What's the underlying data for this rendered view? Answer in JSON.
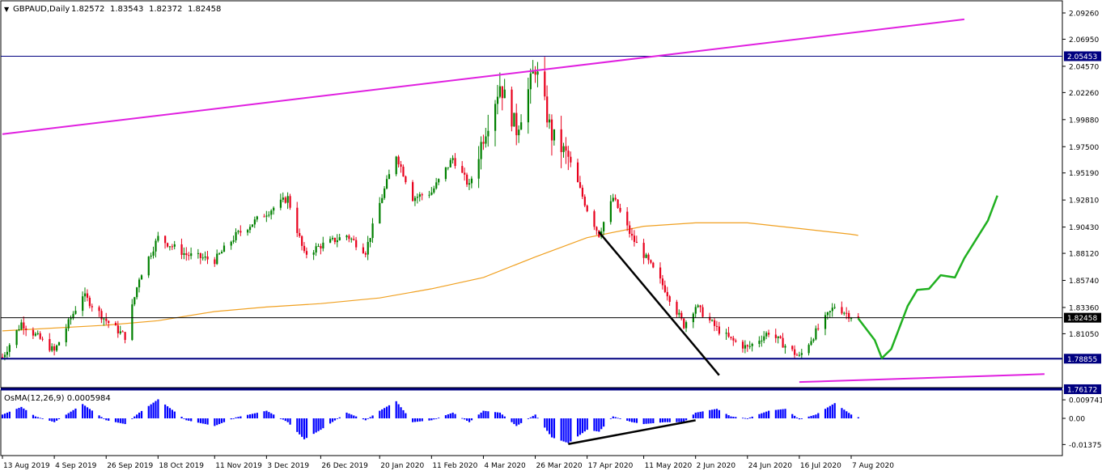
{
  "header": {
    "menu_glyph": "▼",
    "symbol": "GBPAUD,Daily",
    "ohlc": [
      "1.82572",
      "1.83543",
      "1.82372",
      "1.82458"
    ]
  },
  "indicator": {
    "label": "OsMA(12,26,9) 0.0005984"
  },
  "price_axis": {
    "ticks": [
      "2.09260",
      "2.06950",
      "2.04570",
      "2.02260",
      "1.99880",
      "1.97500",
      "1.95190",
      "1.92810",
      "1.90430",
      "1.88120",
      "1.85740",
      "1.83360",
      "1.81050"
    ],
    "tags": [
      {
        "label": "2.05453",
        "bg": "#000080"
      },
      {
        "label": "1.82458",
        "bg": "#000000"
      },
      {
        "label": "1.78855",
        "bg": "#000080"
      },
      {
        "label": "1.76172",
        "bg": "#000080"
      }
    ]
  },
  "osc_axis": {
    "ticks": [
      "0.009741",
      "0.00",
      "-0.013757"
    ]
  },
  "time_axis": {
    "labels": [
      "13 Aug 2019",
      "4 Sep 2019",
      "26 Sep 2019",
      "18 Oct 2019",
      "11 Nov 2019",
      "3 Dec 2019",
      "26 Dec 2019",
      "20 Jan 2020",
      "11 Feb 2020",
      "4 Mar 2020",
      "26 Mar 2020",
      "17 Apr 2020",
      "11 May 2020",
      "2 Jun 2020",
      "24 Jun 2020",
      "16 Jul 2020",
      "7 Aug 2020"
    ]
  },
  "colors": {
    "bull": "#008000",
    "bear": "#e8001c",
    "ma": "#f0a020",
    "hline": "#000080",
    "trend": "#e020e0",
    "forecast": "#20b020",
    "osma": "#0000ff"
  },
  "chart_data": {
    "type": "candlestick",
    "symbol": "GBPAUD",
    "timeframe": "Daily",
    "last": {
      "open": 1.82572,
      "high": 1.83543,
      "low": 1.82372,
      "close": 1.82458
    },
    "ylim": [
      1.7617,
      2.0926
    ],
    "close_path": [
      [
        "13 Aug 2019",
        1.79
      ],
      [
        "21 Aug 2019",
        1.82
      ],
      [
        "4 Sep 2019",
        1.795
      ],
      [
        "16 Sep 2019",
        1.845
      ],
      [
        "26 Sep 2019",
        1.822
      ],
      [
        "4 Oct 2019",
        1.808
      ],
      [
        "10 Oct 2019",
        1.86
      ],
      [
        "18 Oct 2019",
        1.895
      ],
      [
        "30 Oct 2019",
        1.88
      ],
      [
        "11 Nov 2019",
        1.875
      ],
      [
        "20 Nov 2019",
        1.897
      ],
      [
        "3 Dec 2019",
        1.917
      ],
      [
        "12 Dec 2019",
        1.93
      ],
      [
        "19 Dec 2019",
        1.88
      ],
      [
        "26 Dec 2019",
        1.888
      ],
      [
        "6 Jan 2020",
        1.897
      ],
      [
        "14 Jan 2020",
        1.883
      ],
      [
        "20 Jan 2020",
        1.925
      ],
      [
        "27 Jan 2020",
        1.968
      ],
      [
        "3 Feb 2020",
        1.93
      ],
      [
        "11 Feb 2020",
        1.935
      ],
      [
        "20 Feb 2020",
        1.965
      ],
      [
        "27 Feb 2020",
        1.94
      ],
      [
        "4 Mar 2020",
        1.985
      ],
      [
        "11 Mar 2020",
        2.03
      ],
      [
        "18 Mar 2020",
        1.99
      ],
      [
        "26 Mar 2020",
        2.045
      ],
      [
        "2 Apr 2020",
        1.985
      ],
      [
        "9 Apr 2020",
        1.965
      ],
      [
        "17 Apr 2020",
        1.92
      ],
      [
        "22 Apr 2020",
        1.898
      ],
      [
        "28 Apr 2020",
        1.93
      ],
      [
        "6 May 2020",
        1.895
      ],
      [
        "11 May 2020",
        1.88
      ],
      [
        "20 May 2020",
        1.85
      ],
      [
        "28 May 2020",
        1.818
      ],
      [
        "2 Jun 2020",
        1.835
      ],
      [
        "11 Jun 2020",
        1.815
      ],
      [
        "17 Jun 2020",
        1.805
      ],
      [
        "24 Jun 2020",
        1.798
      ],
      [
        "3 Jul 2020",
        1.812
      ],
      [
        "10 Jul 2020",
        1.8
      ],
      [
        "16 Jul 2020",
        1.79
      ],
      [
        "23 Jul 2020",
        1.812
      ],
      [
        "31 Jul 2020",
        1.835
      ],
      [
        "7 Aug 2020",
        1.826
      ],
      [
        "10 Aug 2020",
        1.8246
      ]
    ],
    "moving_average_path": [
      [
        "13 Aug 2019",
        1.813
      ],
      [
        "26 Sep 2019",
        1.818
      ],
      [
        "18 Oct 2019",
        1.822
      ],
      [
        "11 Nov 2019",
        1.83
      ],
      [
        "3 Dec 2019",
        1.834
      ],
      [
        "26 Dec 2019",
        1.837
      ],
      [
        "20 Jan 2020",
        1.842
      ],
      [
        "11 Feb 2020",
        1.85
      ],
      [
        "4 Mar 2020",
        1.86
      ],
      [
        "26 Mar 2020",
        1.878
      ],
      [
        "17 Apr 2020",
        1.895
      ],
      [
        "11 May 2020",
        1.905
      ],
      [
        "2 Jun 2020",
        1.908
      ],
      [
        "24 Jun 2020",
        1.908
      ],
      [
        "16 Jul 2020",
        1.903
      ],
      [
        "7 Aug 2020",
        1.898
      ],
      [
        "10 Aug 2020",
        1.897
      ]
    ],
    "horizontal_levels": [
      2.05453,
      1.82458,
      1.78855,
      1.76172
    ],
    "lines": [
      {
        "from": [
          "13 Aug 2019",
          1.986
        ],
        "to": [
          "24 Sep 2020",
          2.087
        ]
      },
      {
        "from": [
          "22 Apr 2020",
          1.9
        ],
        "to": [
          "12 Jun 2020",
          1.774
        ]
      },
      {
        "from": [
          "16 Jul 2020",
          1.768
        ],
        "to": [
          "28 Oct 2020",
          1.775
        ]
      }
    ],
    "forecast_path": [
      [
        "10 Aug 2020",
        1.824
      ],
      [
        "17 Aug 2020",
        1.805
      ],
      [
        "20 Aug 2020",
        1.789
      ],
      [
        "24 Aug 2020",
        1.797
      ],
      [
        "31 Aug 2020",
        1.835
      ],
      [
        "4 Sep 2020",
        1.849
      ],
      [
        "9 Sep 2020",
        1.85
      ],
      [
        "14 Sep 2020",
        1.862
      ],
      [
        "20 Sep 2020",
        1.86
      ],
      [
        "24 Sep 2020",
        1.877
      ],
      [
        "4 Oct 2020",
        1.91
      ],
      [
        "8 Oct 2020",
        1.932
      ]
    ],
    "osma": {
      "ylim": [
        -0.013757,
        0.009741
      ],
      "histogram": [
        [
          "13 Aug 2019",
          0.002
        ],
        [
          "21 Aug 2019",
          0.006
        ],
        [
          "27 Aug 2019",
          0.001
        ],
        [
          "4 Sep 2019",
          -0.002
        ],
        [
          "16 Sep 2019",
          0.0075
        ],
        [
          "26 Sep 2019",
          -0.001
        ],
        [
          "4 Oct 2019",
          -0.003
        ],
        [
          "10 Oct 2019",
          0.003
        ],
        [
          "18 Oct 2019",
          0.01
        ],
        [
          "30 Oct 2019",
          -0.001
        ],
        [
          "11 Nov 2019",
          -0.004
        ],
        [
          "20 Nov 2019",
          0.0005
        ],
        [
          "3 Dec 2019",
          0.004
        ],
        [
          "12 Dec 2019",
          -0.002
        ],
        [
          "19 Dec 2019",
          -0.011
        ],
        [
          "26 Dec 2019",
          -0.006
        ],
        [
          "6 Jan 2020",
          0.003
        ],
        [
          "14 Jan 2020",
          -0.001
        ],
        [
          "20 Jan 2020",
          0.004
        ],
        [
          "27 Jan 2020",
          0.009
        ],
        [
          "3 Feb 2020",
          -0.002
        ],
        [
          "11 Feb 2020",
          -0.001
        ],
        [
          "20 Feb 2020",
          0.003
        ],
        [
          "27 Feb 2020",
          -0.002
        ],
        [
          "4 Mar 2020",
          0.004
        ],
        [
          "11 Mar 2020",
          0.003
        ],
        [
          "18 Mar 2020",
          -0.004
        ],
        [
          "26 Mar 2020",
          0.002
        ],
        [
          "2 Apr 2020",
          -0.01
        ],
        [
          "9 Apr 2020",
          -0.013
        ],
        [
          "17 Apr 2020",
          -0.006
        ],
        [
          "22 Apr 2020",
          -0.007
        ],
        [
          "28 Apr 2020",
          0.001
        ],
        [
          "6 May 2020",
          -0.002
        ],
        [
          "11 May 2020",
          -0.003
        ],
        [
          "20 May 2020",
          -0.002
        ],
        [
          "28 May 2020",
          -0.002
        ],
        [
          "2 Jun 2020",
          0.003
        ],
        [
          "11 Jun 2020",
          0.005
        ],
        [
          "17 Jun 2020",
          0.001
        ],
        [
          "24 Jun 2020",
          0.0
        ],
        [
          "3 Jul 2020",
          0.004
        ],
        [
          "10 Jul 2020",
          0.005
        ],
        [
          "16 Jul 2020",
          -0.0005
        ],
        [
          "23 Jul 2020",
          0.002
        ],
        [
          "31 Jul 2020",
          0.008
        ],
        [
          "7 Aug 2020",
          0.002
        ],
        [
          "10 Aug 2020",
          0.0006
        ]
      ],
      "line": {
        "from": [
          "9 Apr 2020",
          -0.0135
        ],
        "to": [
          "2 Jun 2020",
          -0.001
        ]
      }
    }
  }
}
